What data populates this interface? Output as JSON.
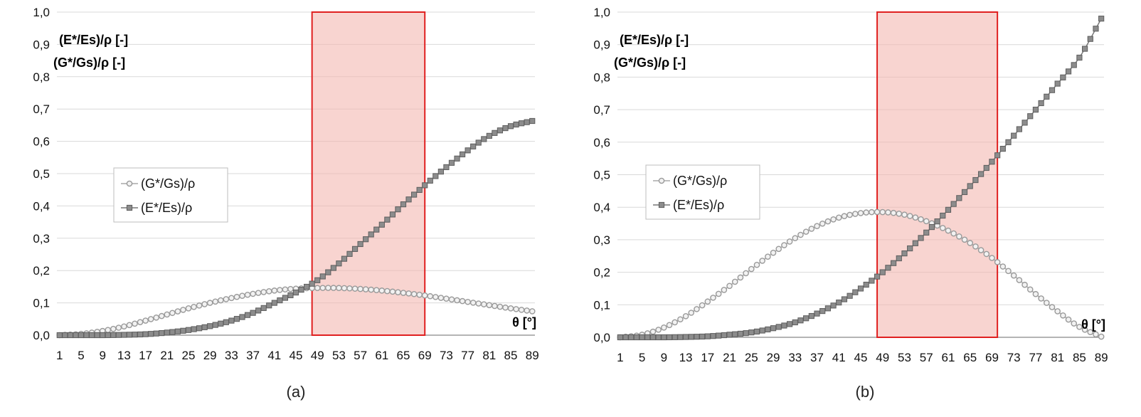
{
  "chart_data": [
    {
      "type": "line",
      "caption": "(a)",
      "ylabel_lines": [
        "(E*/Es)/ρ [-]",
        "(G*/Gs)/ρ  [-]"
      ],
      "xlabel": "θ [°]",
      "x_range": [
        1,
        89
      ],
      "ylim": [
        0,
        1.0
      ],
      "y_ticks": [
        "0,0",
        "0,1",
        "0,2",
        "0,3",
        "0,4",
        "0,5",
        "0,6",
        "0,7",
        "0,8",
        "0,9",
        "1,0"
      ],
      "x_ticks": [
        "1",
        "5",
        "9",
        "13",
        "17",
        "21",
        "25",
        "29",
        "33",
        "37",
        "41",
        "45",
        "49",
        "53",
        "57",
        "61",
        "65",
        "69",
        "73",
        "77",
        "81",
        "85",
        "89"
      ],
      "highlight": {
        "x_from": 48,
        "x_to": 69,
        "y_from": 0,
        "y_to": 1.0,
        "color": "#f4b8b0",
        "border": "#e02020"
      },
      "legend": [
        "(G*/Gs)/ρ",
        "(E*/Es)/ρ"
      ],
      "series": [
        {
          "name": "(G*/Gs)/ρ",
          "marker": "circle",
          "color": "#a8a8a8",
          "points": [
            [
              1,
              0
            ],
            [
              5,
              0.004
            ],
            [
              9,
              0.013
            ],
            [
              13,
              0.027
            ],
            [
              17,
              0.045
            ],
            [
              21,
              0.064
            ],
            [
              25,
              0.083
            ],
            [
              29,
              0.1
            ],
            [
              33,
              0.115
            ],
            [
              37,
              0.128
            ],
            [
              41,
              0.138
            ],
            [
              45,
              0.144
            ],
            [
              49,
              0.146
            ],
            [
              53,
              0.146
            ],
            [
              57,
              0.143
            ],
            [
              61,
              0.138
            ],
            [
              65,
              0.131
            ],
            [
              69,
              0.123
            ],
            [
              73,
              0.113
            ],
            [
              77,
              0.103
            ],
            [
              81,
              0.093
            ],
            [
              85,
              0.083
            ],
            [
              89,
              0.074
            ]
          ]
        },
        {
          "name": "(E*/Es)/ρ",
          "marker": "square",
          "color": "#777777",
          "points": [
            [
              1,
              0
            ],
            [
              5,
              0
            ],
            [
              9,
              0
            ],
            [
              13,
              0.001
            ],
            [
              17,
              0.003
            ],
            [
              21,
              0.008
            ],
            [
              25,
              0.016
            ],
            [
              29,
              0.028
            ],
            [
              33,
              0.045
            ],
            [
              37,
              0.069
            ],
            [
              41,
              0.1
            ],
            [
              45,
              0.132
            ],
            [
              49,
              0.17
            ],
            [
              53,
              0.222
            ],
            [
              57,
              0.282
            ],
            [
              61,
              0.342
            ],
            [
              65,
              0.405
            ],
            [
              69,
              0.464
            ],
            [
              73,
              0.52
            ],
            [
              77,
              0.572
            ],
            [
              81,
              0.617
            ],
            [
              85,
              0.647
            ],
            [
              89,
              0.663
            ]
          ]
        }
      ]
    },
    {
      "type": "line",
      "caption": "(b)",
      "ylabel_lines": [
        "(E*/Es)/ρ [-]",
        "(G*/Gs)/ρ  [-]"
      ],
      "xlabel": "θ [°]",
      "x_range": [
        1,
        89
      ],
      "ylim": [
        0,
        1.0
      ],
      "y_ticks": [
        "0,0",
        "0,1",
        "0,2",
        "0,3",
        "0,4",
        "0,5",
        "0,6",
        "0,7",
        "0,8",
        "0,9",
        "1,0"
      ],
      "x_ticks": [
        "1",
        "5",
        "9",
        "13",
        "17",
        "21",
        "25",
        "29",
        "33",
        "37",
        "41",
        "45",
        "49",
        "53",
        "57",
        "61",
        "65",
        "69",
        "73",
        "77",
        "81",
        "85",
        "89"
      ],
      "highlight": {
        "x_from": 48,
        "x_to": 70,
        "y_from": 0,
        "y_to": 1.0,
        "color": "#f4b8b0",
        "border": "#e02020"
      },
      "legend": [
        "(G*/Gs)/ρ",
        "(E*/Es)/ρ"
      ],
      "series": [
        {
          "name": "(G*/Gs)/ρ",
          "marker": "circle",
          "color": "#a8a8a8",
          "points": [
            [
              1,
              0
            ],
            [
              5,
              0.008
            ],
            [
              9,
              0.03
            ],
            [
              13,
              0.065
            ],
            [
              17,
              0.11
            ],
            [
              21,
              0.158
            ],
            [
              25,
              0.21
            ],
            [
              29,
              0.26
            ],
            [
              33,
              0.305
            ],
            [
              37,
              0.342
            ],
            [
              41,
              0.368
            ],
            [
              45,
              0.382
            ],
            [
              49,
              0.385
            ],
            [
              53,
              0.377
            ],
            [
              57,
              0.357
            ],
            [
              61,
              0.328
            ],
            [
              65,
              0.29
            ],
            [
              69,
              0.244
            ],
            [
              73,
              0.19
            ],
            [
              77,
              0.133
            ],
            [
              81,
              0.08
            ],
            [
              85,
              0.032
            ],
            [
              89,
              0.002
            ]
          ]
        },
        {
          "name": "(E*/Es)/ρ",
          "marker": "square",
          "color": "#777777",
          "points": [
            [
              1,
              0
            ],
            [
              5,
              0
            ],
            [
              9,
              0
            ],
            [
              13,
              0.001
            ],
            [
              17,
              0.003
            ],
            [
              21,
              0.008
            ],
            [
              25,
              0.015
            ],
            [
              29,
              0.028
            ],
            [
              33,
              0.046
            ],
            [
              37,
              0.073
            ],
            [
              41,
              0.107
            ],
            [
              45,
              0.15
            ],
            [
              49,
              0.2
            ],
            [
              53,
              0.258
            ],
            [
              57,
              0.322
            ],
            [
              61,
              0.392
            ],
            [
              65,
              0.465
            ],
            [
              69,
              0.54
            ],
            [
              73,
              0.62
            ],
            [
              77,
              0.7
            ],
            [
              81,
              0.78
            ],
            [
              85,
              0.86
            ],
            [
              89,
              0.98
            ]
          ]
        }
      ]
    }
  ]
}
